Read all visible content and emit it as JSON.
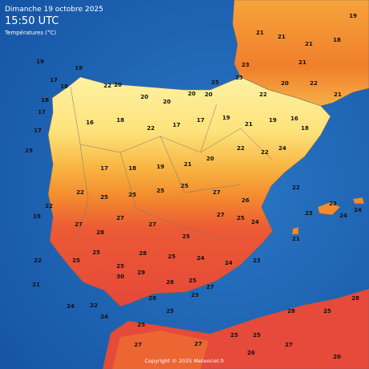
{
  "header": {
    "date": "Dimanche 19 octobre 2025",
    "time": "15:50 UTC",
    "subtitle": "Températures (°C)"
  },
  "stations": [
    19,
    19,
    17,
    18,
    17,
    17,
    19,
    19,
    22,
    22,
    21,
    24,
    22,
    24,
    18,
    22,
    20,
    20,
    20,
    20,
    20,
    25,
    23,
    23,
    16,
    18,
    22,
    17,
    17,
    19,
    21,
    19,
    16,
    18,
    17,
    18,
    19,
    21,
    20,
    22,
    22,
    24,
    22,
    25,
    25,
    25,
    25,
    27,
    26,
    27,
    28,
    27,
    27,
    25,
    27,
    25,
    24,
    25,
    25,
    25,
    28,
    25,
    24,
    24,
    23,
    30,
    29,
    26,
    25,
    27,
    22,
    23,
    23,
    24,
    24,
    21,
    21,
    21,
    21,
    18,
    19,
    21,
    22,
    20,
    22,
    21,
    25,
    25,
    27,
    27,
    25,
    25,
    28,
    25,
    28,
    26,
    27,
    20,
    28,
    23
  ],
  "copyright": "Copyright © 2025 Meteociel.fr"
}
